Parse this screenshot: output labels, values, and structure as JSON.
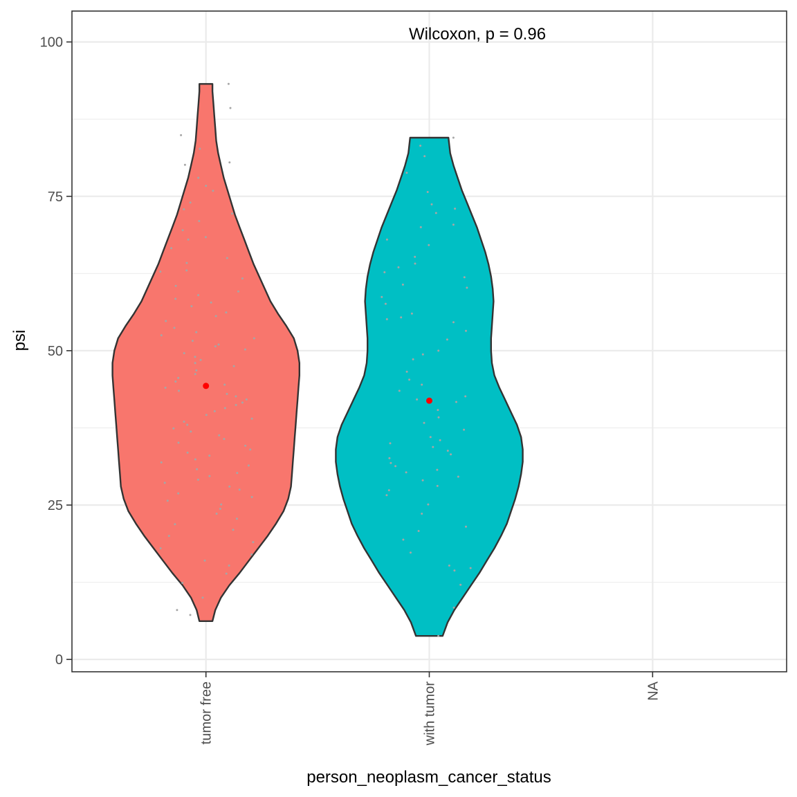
{
  "chart_data": {
    "type": "violin",
    "title": "",
    "xlabel": "person_neoplasm_cancer_status",
    "ylabel": "psi",
    "categories": [
      "tumor free",
      "with tumor",
      "NA"
    ],
    "ylim": [
      -2,
      105
    ],
    "yticks": [
      0,
      25,
      50,
      75,
      100
    ],
    "ytick_labels": [
      "0",
      "25",
      "50",
      "75",
      "100"
    ],
    "grid": true,
    "legend": "none",
    "annotation": "Wilcoxon, p = 0.96",
    "colors": {
      "tumor free": "#f8766d",
      "with tumor": "#00bfc4",
      "outline": "#333333",
      "jitter": "#a6a6a6",
      "mean_point": "#ff0000",
      "grid": "#ebebeb",
      "panel_border": "#333333"
    },
    "violins": [
      {
        "category": "tumor free",
        "min": 6.2,
        "max": 93.2,
        "mean": 44.3,
        "density_profile": [
          [
            6.2,
            0.07
          ],
          [
            8,
            0.1
          ],
          [
            10,
            0.16
          ],
          [
            12,
            0.25
          ],
          [
            14,
            0.36
          ],
          [
            16,
            0.46
          ],
          [
            18,
            0.56
          ],
          [
            20,
            0.66
          ],
          [
            22,
            0.75
          ],
          [
            24,
            0.83
          ],
          [
            26,
            0.88
          ],
          [
            28,
            0.91
          ],
          [
            30,
            0.92
          ],
          [
            32,
            0.93
          ],
          [
            34,
            0.94
          ],
          [
            36,
            0.95
          ],
          [
            38,
            0.96
          ],
          [
            40,
            0.97
          ],
          [
            42,
            0.98
          ],
          [
            44,
            0.99
          ],
          [
            46,
            1.0
          ],
          [
            48,
            1.0
          ],
          [
            50,
            0.98
          ],
          [
            52,
            0.94
          ],
          [
            54,
            0.86
          ],
          [
            56,
            0.77
          ],
          [
            58,
            0.69
          ],
          [
            60,
            0.63
          ],
          [
            62,
            0.57
          ],
          [
            64,
            0.51
          ],
          [
            66,
            0.46
          ],
          [
            68,
            0.41
          ],
          [
            70,
            0.36
          ],
          [
            72,
            0.31
          ],
          [
            74,
            0.27
          ],
          [
            76,
            0.23
          ],
          [
            78,
            0.19
          ],
          [
            80,
            0.16
          ],
          [
            82,
            0.13
          ],
          [
            84,
            0.11
          ],
          [
            86,
            0.1
          ],
          [
            88,
            0.09
          ],
          [
            90,
            0.08
          ],
          [
            92,
            0.07
          ],
          [
            93.2,
            0.07
          ]
        ],
        "points": [
          93.2,
          89.3,
          84.9,
          82.7,
          80.5,
          80.1,
          78.0,
          76.7,
          75.9,
          74.0,
          72.9,
          72.2,
          71.0,
          69.5,
          68.4,
          68.0,
          66.6,
          65.0,
          64.2,
          63.0,
          62.8,
          61.7,
          60.5,
          59.6,
          59.0,
          58.4,
          57.8,
          57.2,
          56.2,
          55.6,
          54.8,
          53.7,
          53.0,
          52.5,
          52.0,
          51.6,
          51.0,
          50.7,
          50.2,
          49.6,
          49.0,
          48.5,
          48.0,
          47.5,
          46.8,
          46.2,
          45.6,
          45.0,
          44.5,
          44.0,
          43.5,
          43.0,
          42.6,
          42.1,
          41.6,
          41.2,
          40.7,
          40.2,
          39.6,
          39.0,
          38.5,
          38.0,
          37.4,
          36.9,
          36.3,
          35.7,
          35.1,
          34.6,
          34.0,
          33.5,
          33.0,
          32.4,
          31.9,
          31.4,
          30.8,
          30.2,
          29.7,
          29.1,
          28.6,
          28.0,
          27.5,
          26.9,
          26.3,
          25.7,
          25.1,
          24.4,
          23.6,
          22.8,
          21.9,
          21.0,
          20.0,
          19.0,
          18.0,
          17.0,
          16.0,
          15.2,
          13.9,
          12.4,
          10.0,
          8.0,
          7.2
        ]
      },
      {
        "category": "with tumor",
        "min": 3.8,
        "max": 84.5,
        "mean": 41.9,
        "density_profile": [
          [
            3.8,
            0.16
          ],
          [
            6,
            0.22
          ],
          [
            8,
            0.3
          ],
          [
            10,
            0.4
          ],
          [
            12,
            0.5
          ],
          [
            14,
            0.6
          ],
          [
            16,
            0.69
          ],
          [
            18,
            0.78
          ],
          [
            20,
            0.86
          ],
          [
            22,
            0.93
          ],
          [
            24,
            0.98
          ],
          [
            26,
            1.03
          ],
          [
            28,
            1.07
          ],
          [
            30,
            1.1
          ],
          [
            32,
            1.12
          ],
          [
            34,
            1.12
          ],
          [
            36,
            1.1
          ],
          [
            38,
            1.05
          ],
          [
            40,
            0.98
          ],
          [
            42,
            0.91
          ],
          [
            44,
            0.84
          ],
          [
            46,
            0.78
          ],
          [
            48,
            0.75
          ],
          [
            50,
            0.74
          ],
          [
            52,
            0.74
          ],
          [
            54,
            0.75
          ],
          [
            56,
            0.76
          ],
          [
            58,
            0.77
          ],
          [
            60,
            0.76
          ],
          [
            62,
            0.74
          ],
          [
            64,
            0.71
          ],
          [
            66,
            0.67
          ],
          [
            68,
            0.62
          ],
          [
            70,
            0.57
          ],
          [
            72,
            0.51
          ],
          [
            74,
            0.45
          ],
          [
            76,
            0.39
          ],
          [
            78,
            0.34
          ],
          [
            80,
            0.29
          ],
          [
            82,
            0.25
          ],
          [
            84.5,
            0.23
          ]
        ],
        "points": [
          84.5,
          83.2,
          81.5,
          78.8,
          75.7,
          73.7,
          73.0,
          72.3,
          70.4,
          70.0,
          68.0,
          67.1,
          65.2,
          64.1,
          63.5,
          62.7,
          61.9,
          60.7,
          60.2,
          58.7,
          57.6,
          56.0,
          55.4,
          55.1,
          54.6,
          53.2,
          51.8,
          50.0,
          49.4,
          48.6,
          46.6,
          45.3,
          44.5,
          43.5,
          42.6,
          42.1,
          41.7,
          40.4,
          39.2,
          38.3,
          37.2,
          36.0,
          35.5,
          35.0,
          34.4,
          33.8,
          33.2,
          32.6,
          31.8,
          31.3,
          30.7,
          30.3,
          29.6,
          29.0,
          28.1,
          27.4,
          26.6,
          25.1,
          23.6,
          21.5,
          20.8,
          19.4,
          17.3,
          15.2,
          14.8,
          14.4,
          12.1,
          8.4,
          3.8
        ]
      }
    ]
  }
}
